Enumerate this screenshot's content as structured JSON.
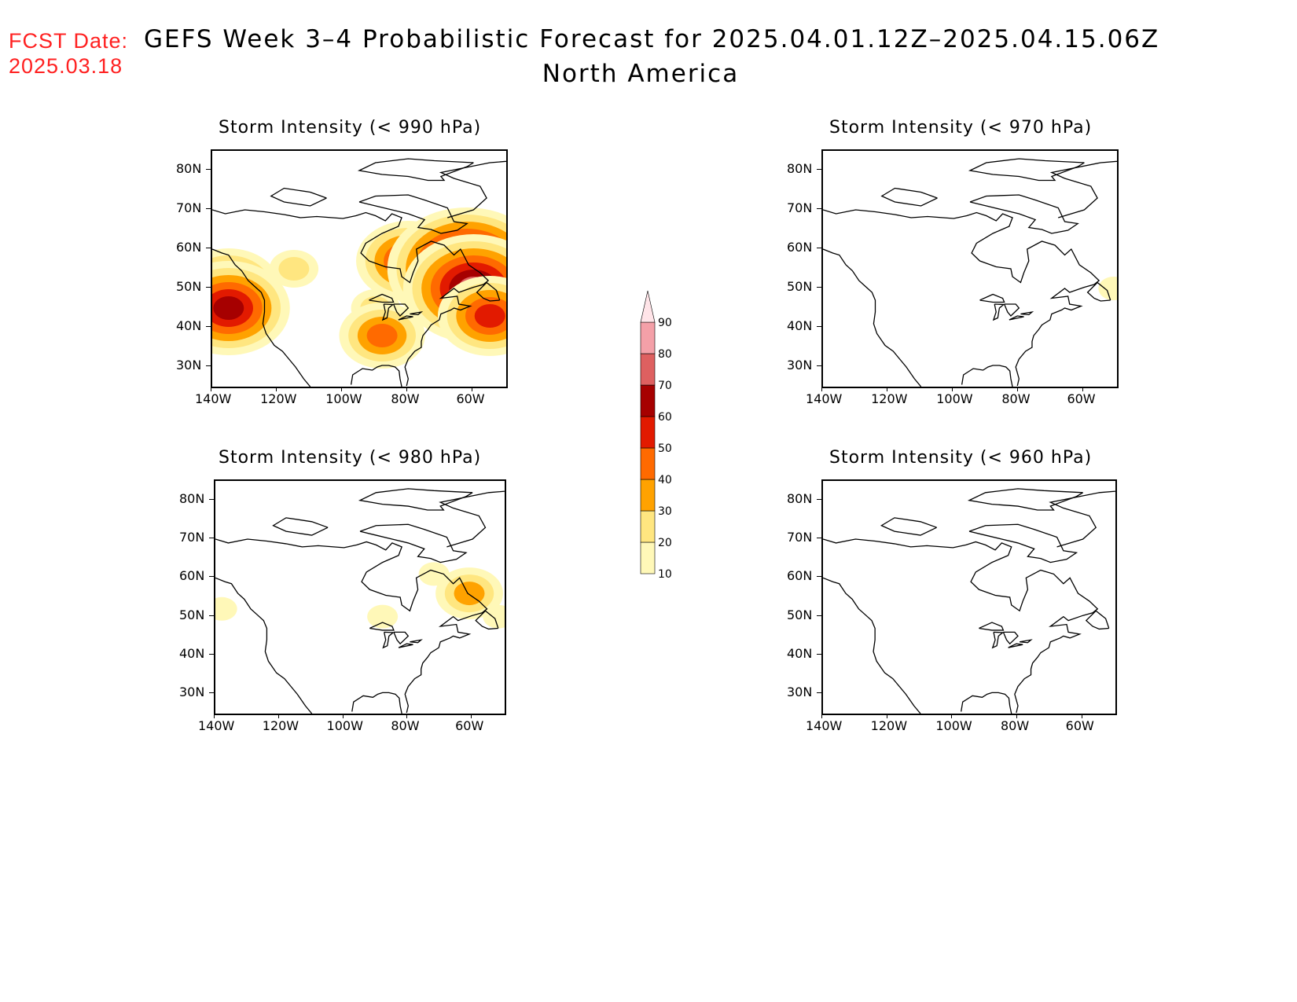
{
  "header": {
    "fcst_label": "FCST Date:",
    "fcst_date": "2025.03.18",
    "title_line1": "GEFS Week 3–4 Probabilistic Forecast for 2025.04.01.12Z–2025.04.15.06Z",
    "title_line2": "North America"
  },
  "axes": {
    "lat_labels": [
      "80N",
      "70N",
      "60N",
      "50N",
      "40N",
      "30N"
    ],
    "lon_labels": [
      "140W",
      "120W",
      "100W",
      "80W",
      "60W"
    ]
  },
  "panels": [
    {
      "id": "p990",
      "title": "Storm Intensity (< 990 hPa)"
    },
    {
      "id": "p970",
      "title": "Storm Intensity (< 970 hPa)"
    },
    {
      "id": "p980",
      "title": "Storm Intensity (< 980 hPa)"
    },
    {
      "id": "p960",
      "title": "Storm Intensity (< 960 hPa)"
    }
  ],
  "colorbar": {
    "labels": [
      "10",
      "20",
      "30",
      "40",
      "50",
      "60",
      "70",
      "80",
      "90"
    ],
    "colors": [
      "#fff8b8",
      "#ffe680",
      "#ffa200",
      "#ff6a00",
      "#e21a00",
      "#a60000",
      "#de6060",
      "#f4a0a8",
      "#ffe4e8"
    ]
  },
  "chart_data": {
    "type": "heatmap",
    "variable": "Storm Intensity probability (%)",
    "lon_range": [
      -140,
      -50
    ],
    "lat_range": [
      25,
      85
    ],
    "panels": [
      {
        "threshold_hPa": 990,
        "regions": [
          {
            "lon": -135,
            "lat": 50,
            "prob": 50
          },
          {
            "lon": -135,
            "lat": 45,
            "prob": 60
          },
          {
            "lon": -115,
            "lat": 55,
            "prob": 20
          },
          {
            "lon": -90,
            "lat": 45,
            "prob": 20
          },
          {
            "lon": -88,
            "lat": 38,
            "prob": 40
          },
          {
            "lon": -80,
            "lat": 57,
            "prob": 50
          },
          {
            "lon": -62,
            "lat": 55,
            "prob": 80
          },
          {
            "lon": -60,
            "lat": 50,
            "prob": 70
          },
          {
            "lon": -55,
            "lat": 43,
            "prob": 50
          }
        ]
      },
      {
        "threshold_hPa": 970,
        "regions": [
          {
            "lon": -51,
            "lat": 50,
            "prob": 10
          }
        ]
      },
      {
        "threshold_hPa": 980,
        "regions": [
          {
            "lon": -138,
            "lat": 52,
            "prob": 10
          },
          {
            "lon": -88,
            "lat": 50,
            "prob": 10
          },
          {
            "lon": -72,
            "lat": 61,
            "prob": 10
          },
          {
            "lon": -61,
            "lat": 56,
            "prob": 30
          },
          {
            "lon": -52,
            "lat": 50,
            "prob": 10
          }
        ]
      },
      {
        "threshold_hPa": 960,
        "regions": []
      }
    ]
  }
}
